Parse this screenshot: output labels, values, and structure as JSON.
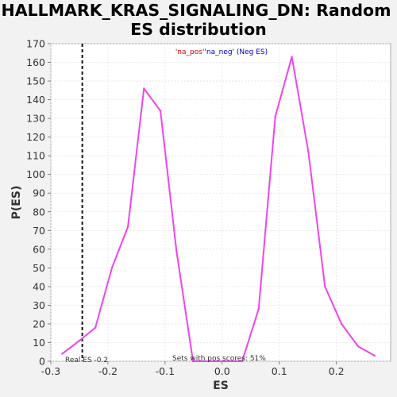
{
  "chart_data": {
    "type": "line",
    "title_lines": [
      "HALLMARK_KRAS_SIGNALING_DN: Random",
      "ES distribution"
    ],
    "xlabel": "ES",
    "ylabel": "P(ES)",
    "xlim": [
      -0.3,
      0.295
    ],
    "ylim": [
      0,
      170
    ],
    "xticks": [
      -0.3,
      -0.2,
      -0.1,
      0.0,
      0.1,
      0.2
    ],
    "xtick_labels": [
      "-0.3",
      "-0.2",
      "-0.1",
      "0.0",
      "0.1",
      "0.2"
    ],
    "yticks": [
      0,
      10,
      20,
      30,
      40,
      50,
      60,
      70,
      80,
      90,
      100,
      110,
      120,
      130,
      140,
      150,
      160,
      170
    ],
    "ytick_labels": [
      "0",
      "10",
      "20",
      "30",
      "40",
      "50",
      "60",
      "70",
      "80",
      "90",
      "100",
      "110",
      "120",
      "130",
      "140",
      "150",
      "160",
      "170"
    ],
    "grid": true,
    "series": [
      {
        "color": "#ee44ee",
        "x": [
          -0.28,
          -0.25,
          -0.222,
          -0.193,
          -0.165,
          -0.137,
          -0.108,
          -0.08,
          -0.051,
          -0.022,
          0.006,
          0.035,
          0.064,
          0.093,
          0.122,
          0.151,
          0.18,
          0.209,
          0.238,
          0.267
        ],
        "y": [
          4,
          11,
          18,
          50,
          72,
          146,
          134,
          59,
          0,
          0,
          0,
          0,
          28,
          131,
          163,
          112,
          40,
          20,
          8,
          3
        ]
      }
    ],
    "real_es": -0.2449,
    "legend": {
      "pos_label": "'na_pos'",
      "neg_label": "'na_neg' (Neg ES)",
      "pos_color": "#cc0000",
      "neg_color": "#0000cc"
    },
    "annotations": {
      "real_es": "Real ES -0.2",
      "sets_with_pos": "Sets with pos scores: 51%"
    }
  }
}
